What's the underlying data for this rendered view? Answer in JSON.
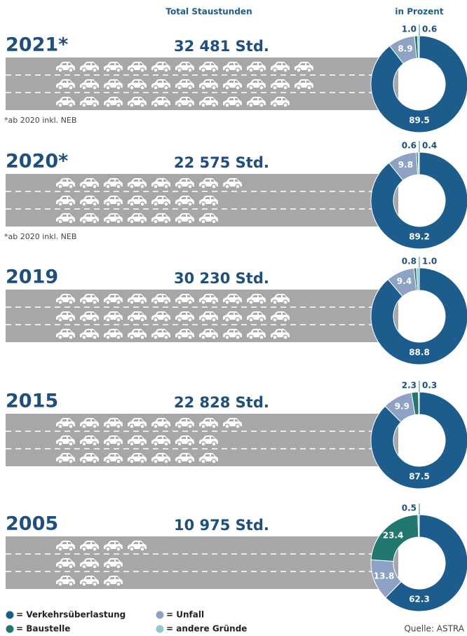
{
  "header": {
    "total": "Total Staustunden",
    "percent": "in Prozent"
  },
  "chart_data": [
    {
      "type": "pie",
      "title": "2021*",
      "subtitle": "32 481 Std.",
      "total": 32481,
      "note": "*ab 2020 inkl. NEB",
      "values": [
        89.5,
        8.9,
        1.0,
        0.6
      ],
      "value_labels": [
        "89.5",
        "8.9",
        "1.0",
        "0.6"
      ]
    },
    {
      "type": "pie",
      "title": "2020*",
      "subtitle": "22 575 Std.",
      "total": 22575,
      "note": "*ab 2020 inkl. NEB",
      "values": [
        89.2,
        9.8,
        0.6,
        0.4
      ],
      "value_labels": [
        "89.2",
        "9.8",
        "0.6",
        "0.4"
      ]
    },
    {
      "type": "pie",
      "title": "2019",
      "subtitle": "30 230 Std.",
      "total": 30230,
      "values": [
        88.8,
        9.4,
        0.8,
        1.0
      ],
      "value_labels": [
        "88.8",
        "9.4",
        "0.8",
        "1.0"
      ]
    },
    {
      "type": "pie",
      "title": "2015",
      "subtitle": "22 828 Std.",
      "total": 22828,
      "values": [
        87.5,
        9.9,
        2.3,
        0.3
      ],
      "value_labels": [
        "87.5",
        "9.9",
        "2.3",
        "0.3"
      ]
    },
    {
      "type": "pie",
      "title": "2005",
      "subtitle": "10 975 Std.",
      "total": 10975,
      "values": [
        62.3,
        13.8,
        23.4,
        0.5
      ],
      "value_labels": [
        "62.3",
        "13.8",
        "23.4",
        "0.5"
      ]
    }
  ],
  "legend": [
    {
      "name": "= Verkehrsüberlastung",
      "color": "#1c5d8e"
    },
    {
      "name": "= Unfall",
      "color": "#8ea2c6"
    },
    {
      "name": "= Baustelle",
      "color": "#22776f"
    },
    {
      "name": "= andere Gründe",
      "color": "#93c9c7"
    }
  ],
  "source": "Quelle: ASTRA"
}
